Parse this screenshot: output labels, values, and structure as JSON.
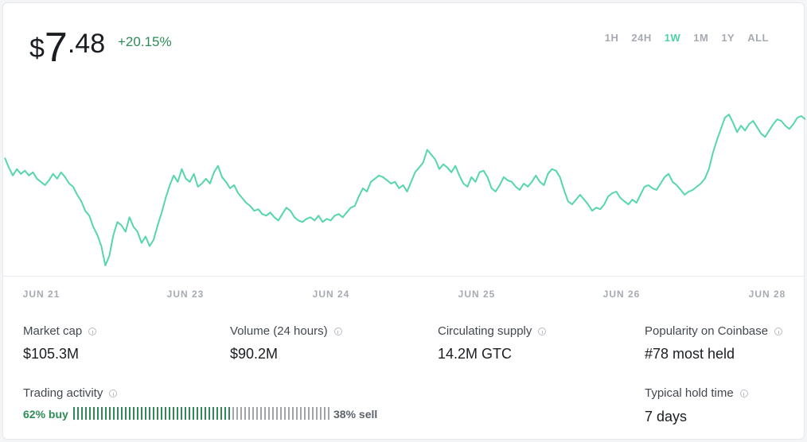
{
  "price": {
    "currency": "$",
    "integer": "7",
    "decimal": ".48"
  },
  "change": "+20.15%",
  "ranges": [
    {
      "label": "1H",
      "active": false
    },
    {
      "label": "24H",
      "active": false
    },
    {
      "label": "1W",
      "active": true
    },
    {
      "label": "1M",
      "active": false
    },
    {
      "label": "1Y",
      "active": false
    },
    {
      "label": "ALL",
      "active": false
    }
  ],
  "chart_data": {
    "type": "line",
    "x_tick_labels": [
      "JUN 21",
      "JUN 23",
      "JUN 24",
      "JUN 25",
      "JUN 26",
      "JUN 28"
    ],
    "color": "#55d6ab",
    "y_relative_values": [
      0.73,
      0.67,
      0.62,
      0.66,
      0.63,
      0.65,
      0.62,
      0.64,
      0.6,
      0.58,
      0.56,
      0.59,
      0.63,
      0.6,
      0.64,
      0.61,
      0.57,
      0.55,
      0.5,
      0.46,
      0.4,
      0.37,
      0.3,
      0.25,
      0.18,
      0.06,
      0.12,
      0.25,
      0.33,
      0.31,
      0.27,
      0.36,
      0.3,
      0.27,
      0.2,
      0.24,
      0.18,
      0.22,
      0.31,
      0.39,
      0.48,
      0.56,
      0.62,
      0.58,
      0.66,
      0.6,
      0.58,
      0.63,
      0.55,
      0.57,
      0.6,
      0.57,
      0.64,
      0.68,
      0.61,
      0.58,
      0.54,
      0.56,
      0.51,
      0.48,
      0.45,
      0.43,
      0.4,
      0.41,
      0.38,
      0.37,
      0.39,
      0.36,
      0.34,
      0.38,
      0.42,
      0.4,
      0.36,
      0.34,
      0.33,
      0.35,
      0.36,
      0.34,
      0.37,
      0.33,
      0.35,
      0.34,
      0.37,
      0.38,
      0.36,
      0.39,
      0.42,
      0.43,
      0.49,
      0.54,
      0.52,
      0.58,
      0.6,
      0.62,
      0.61,
      0.59,
      0.57,
      0.58,
      0.54,
      0.56,
      0.52,
      0.58,
      0.64,
      0.67,
      0.7,
      0.78,
      0.75,
      0.72,
      0.66,
      0.69,
      0.67,
      0.64,
      0.68,
      0.62,
      0.57,
      0.55,
      0.61,
      0.58,
      0.64,
      0.65,
      0.61,
      0.54,
      0.52,
      0.56,
      0.61,
      0.59,
      0.58,
      0.55,
      0.53,
      0.57,
      0.55,
      0.58,
      0.62,
      0.58,
      0.56,
      0.63,
      0.66,
      0.65,
      0.61,
      0.53,
      0.46,
      0.44,
      0.47,
      0.5,
      0.47,
      0.44,
      0.4,
      0.42,
      0.41,
      0.44,
      0.49,
      0.51,
      0.52,
      0.48,
      0.46,
      0.44,
      0.47,
      0.45,
      0.5,
      0.55,
      0.56,
      0.54,
      0.53,
      0.57,
      0.61,
      0.63,
      0.58,
      0.56,
      0.53,
      0.5,
      0.52,
      0.53,
      0.55,
      0.57,
      0.6,
      0.66,
      0.76,
      0.84,
      0.91,
      0.98,
      1.0,
      0.95,
      0.89,
      0.93,
      0.9,
      0.94,
      0.96,
      0.92,
      0.88,
      0.86,
      0.9,
      0.94,
      0.97,
      0.96,
      0.93,
      0.91,
      0.94,
      0.98,
      0.99,
      0.97
    ]
  },
  "stats": {
    "market_cap": {
      "label": "Market cap",
      "value": "$105.3M"
    },
    "volume": {
      "label": "Volume (24 hours)",
      "value": "$90.2M"
    },
    "circulating_supply": {
      "label": "Circulating supply",
      "value": "14.2M GTC"
    },
    "popularity": {
      "label": "Popularity on Coinbase",
      "value": "#78 most held"
    },
    "trading_activity": {
      "label": "Trading activity",
      "buy": "62% buy",
      "sell": "38% sell",
      "buy_fraction": 0.62
    },
    "hold_time": {
      "label": "Typical hold time",
      "value": "7 days"
    }
  },
  "colors": {
    "buy": "#2e8b57",
    "sell": "#a0a5ac",
    "line": "#55d6ab",
    "accent": "#4fd1a5"
  }
}
